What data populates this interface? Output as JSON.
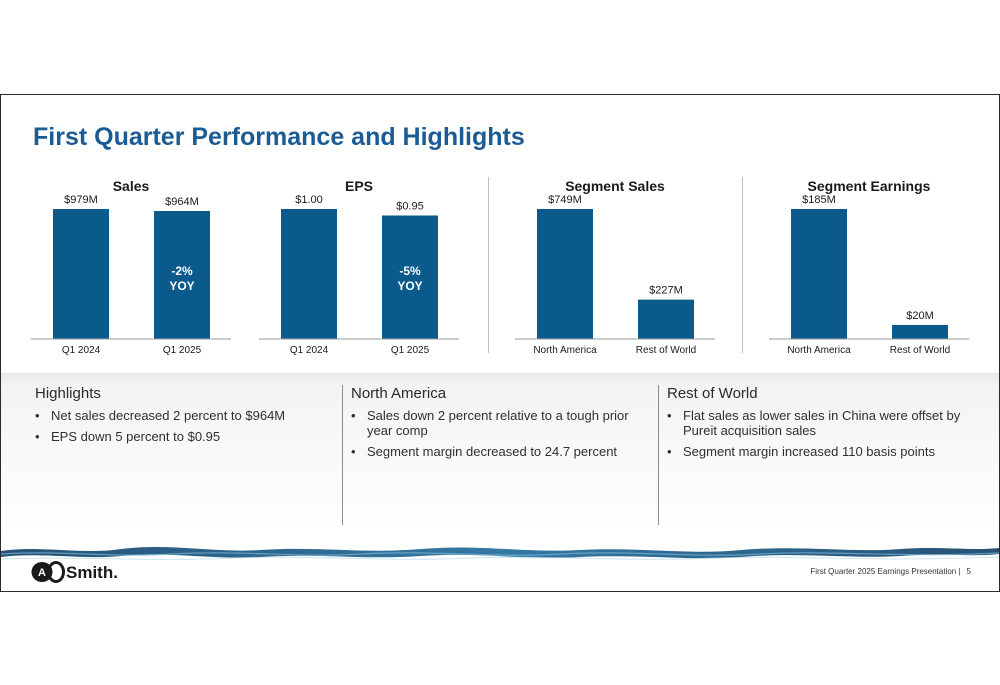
{
  "slide": {
    "title": "First Quarter Performance and Highlights"
  },
  "colors": {
    "bar": "#0b5a8c",
    "title": "#1c5b93",
    "yoy_text": "#ffffff"
  },
  "chart_data": [
    {
      "type": "bar",
      "title": "Sales",
      "categories": [
        "Q1 2024",
        "Q1 2025"
      ],
      "values": [
        979,
        964
      ],
      "value_labels": [
        "$979M",
        "$964M"
      ],
      "unit": "$M",
      "annotation": {
        "index": 1,
        "lines": [
          "-2%",
          "YOY"
        ]
      }
    },
    {
      "type": "bar",
      "title": "EPS",
      "categories": [
        "Q1 2024",
        "Q1 2025"
      ],
      "values": [
        1.0,
        0.95
      ],
      "value_labels": [
        "$1.00",
        "$0.95"
      ],
      "unit": "$",
      "annotation": {
        "index": 1,
        "lines": [
          "-5%",
          "YOY"
        ]
      }
    },
    {
      "type": "bar",
      "title": "Segment Sales",
      "categories": [
        "North America",
        "Rest of World"
      ],
      "values": [
        749,
        227
      ],
      "value_labels": [
        "$749M",
        "$227M"
      ],
      "unit": "$M"
    },
    {
      "type": "bar",
      "title": "Segment Earnings",
      "categories": [
        "North America",
        "Rest of World"
      ],
      "values": [
        185,
        20
      ],
      "value_labels": [
        "$185M",
        "$20M"
      ],
      "unit": "$M"
    }
  ],
  "highlights": {
    "heading": "Highlights",
    "items": [
      "Net sales decreased 2 percent to $964M",
      "EPS down 5 percent to $0.95"
    ]
  },
  "north_america": {
    "heading": "North America",
    "items": [
      "Sales down 2 percent relative to a tough prior year comp",
      "Segment margin decreased to 24.7 percent"
    ]
  },
  "rest_of_world": {
    "heading": "Rest of World",
    "items": [
      "Flat sales as lower sales in China were offset by Pureit acquisition sales",
      "Segment margin increased 110 basis points"
    ]
  },
  "logo": {
    "text": "Smith."
  },
  "footer": {
    "text": "First Quarter 2025 Earnings Presentation |",
    "page": "5"
  }
}
